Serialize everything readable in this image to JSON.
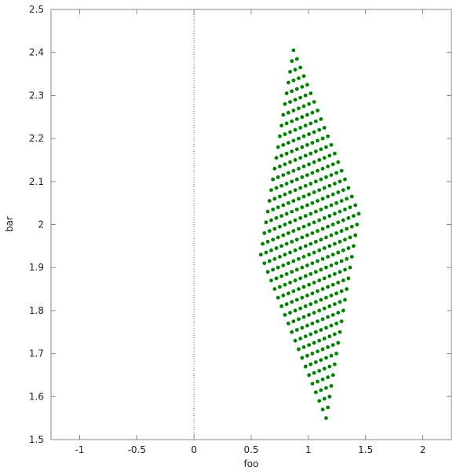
{
  "chart_data": {
    "type": "scatter",
    "title": "",
    "xlabel": "foo",
    "ylabel": "bar",
    "xlim": [
      -1.25,
      2.25
    ],
    "ylim": [
      1.5,
      2.5
    ],
    "xticks": [
      "-1",
      "-0.5",
      "0",
      "0.5",
      "1",
      "1.5",
      "2"
    ],
    "xtick_values": [
      -1,
      -0.5,
      0,
      0.5,
      1,
      1.5,
      2
    ],
    "yticks": [
      "1.5",
      "1.6",
      "1.7",
      "1.8",
      "1.9",
      "2",
      "2.1",
      "2.2",
      "2.3",
      "2.4",
      "2.5"
    ],
    "ytick_values": [
      1.5,
      1.6,
      1.7,
      1.8,
      1.9,
      2.0,
      2.1,
      2.2,
      2.3,
      2.4,
      2.5
    ],
    "zero_line": "x=0 dotted",
    "grid": false,
    "marker_color": "#008000",
    "rows": [
      {
        "x": [
          0.87,
          0.9,
          0.93,
          0.96,
          0.99,
          1.02,
          1.05,
          1.08,
          1.11,
          1.14,
          1.17,
          1.2,
          1.23,
          1.26,
          1.29,
          1.32,
          1.35,
          1.38,
          1.41,
          1.44
        ],
        "y": [
          2.405,
          2.385,
          2.365,
          2.345,
          2.325,
          2.305,
          2.285,
          2.265,
          2.245,
          2.225,
          2.205,
          2.185,
          2.165,
          2.145,
          2.125,
          2.105,
          2.085,
          2.065,
          2.045,
          2.025
        ]
      },
      {
        "x": [
          0.855,
          0.885,
          0.915,
          0.945,
          0.975,
          1.005,
          1.035,
          1.065,
          1.095,
          1.125,
          1.155,
          1.185,
          1.215,
          1.245,
          1.275,
          1.305,
          1.335,
          1.365,
          1.395,
          1.425
        ],
        "y": [
          2.38,
          2.36,
          2.34,
          2.32,
          2.3,
          2.28,
          2.26,
          2.24,
          2.22,
          2.2,
          2.18,
          2.16,
          2.14,
          2.12,
          2.1,
          2.08,
          2.06,
          2.04,
          2.02,
          2.0
        ]
      },
      {
        "x": [
          0.84,
          0.87,
          0.9,
          0.93,
          0.96,
          0.99,
          1.02,
          1.05,
          1.08,
          1.11,
          1.14,
          1.17,
          1.2,
          1.23,
          1.26,
          1.29,
          1.32,
          1.35,
          1.38,
          1.41
        ],
        "y": [
          2.355,
          2.335,
          2.315,
          2.295,
          2.275,
          2.255,
          2.235,
          2.215,
          2.195,
          2.175,
          2.155,
          2.135,
          2.115,
          2.095,
          2.075,
          2.055,
          2.035,
          2.015,
          1.995,
          1.975
        ]
      },
      {
        "x": [
          0.825,
          0.855,
          0.885,
          0.915,
          0.945,
          0.975,
          1.005,
          1.035,
          1.065,
          1.095,
          1.125,
          1.155,
          1.185,
          1.215,
          1.245,
          1.275,
          1.305,
          1.335,
          1.365,
          1.395
        ],
        "y": [
          2.33,
          2.31,
          2.29,
          2.27,
          2.25,
          2.23,
          2.21,
          2.19,
          2.17,
          2.15,
          2.13,
          2.11,
          2.09,
          2.07,
          2.05,
          2.03,
          2.01,
          1.99,
          1.97,
          1.95
        ]
      },
      {
        "x": [
          0.81,
          0.84,
          0.87,
          0.9,
          0.93,
          0.96,
          0.99,
          1.02,
          1.05,
          1.08,
          1.11,
          1.14,
          1.17,
          1.2,
          1.23,
          1.26,
          1.29,
          1.32,
          1.35,
          1.38
        ],
        "y": [
          2.305,
          2.285,
          2.265,
          2.245,
          2.225,
          2.205,
          2.185,
          2.165,
          2.145,
          2.125,
          2.105,
          2.085,
          2.065,
          2.045,
          2.025,
          2.005,
          1.985,
          1.965,
          1.945,
          1.925
        ]
      },
      {
        "x": [
          0.795,
          0.825,
          0.855,
          0.885,
          0.915,
          0.945,
          0.975,
          1.005,
          1.035,
          1.065,
          1.095,
          1.125,
          1.155,
          1.185,
          1.215,
          1.245,
          1.275,
          1.305,
          1.335,
          1.365
        ],
        "y": [
          2.28,
          2.26,
          2.24,
          2.22,
          2.2,
          2.18,
          2.16,
          2.14,
          2.12,
          2.1,
          2.08,
          2.06,
          2.04,
          2.02,
          2.0,
          1.98,
          1.96,
          1.94,
          1.92,
          1.9
        ]
      },
      {
        "x": [
          0.78,
          0.81,
          0.84,
          0.87,
          0.9,
          0.93,
          0.96,
          0.99,
          1.02,
          1.05,
          1.08,
          1.11,
          1.14,
          1.17,
          1.2,
          1.23,
          1.26,
          1.29,
          1.32,
          1.35
        ],
        "y": [
          2.255,
          2.235,
          2.215,
          2.195,
          2.175,
          2.155,
          2.135,
          2.115,
          2.095,
          2.075,
          2.055,
          2.035,
          2.015,
          1.995,
          1.975,
          1.955,
          1.935,
          1.915,
          1.895,
          1.875
        ]
      },
      {
        "x": [
          0.765,
          0.795,
          0.825,
          0.855,
          0.885,
          0.915,
          0.945,
          0.975,
          1.005,
          1.035,
          1.065,
          1.095,
          1.125,
          1.155,
          1.185,
          1.215,
          1.245,
          1.275,
          1.305,
          1.335
        ],
        "y": [
          2.23,
          2.21,
          2.19,
          2.17,
          2.15,
          2.13,
          2.11,
          2.09,
          2.07,
          2.05,
          2.03,
          2.01,
          1.99,
          1.97,
          1.95,
          1.93,
          1.91,
          1.89,
          1.87,
          1.85
        ]
      },
      {
        "x": [
          0.75,
          0.78,
          0.81,
          0.84,
          0.87,
          0.9,
          0.93,
          0.96,
          0.99,
          1.02,
          1.05,
          1.08,
          1.11,
          1.14,
          1.17,
          1.2,
          1.23,
          1.26,
          1.29,
          1.32
        ],
        "y": [
          2.205,
          2.185,
          2.165,
          2.145,
          2.125,
          2.105,
          2.085,
          2.065,
          2.045,
          2.025,
          2.005,
          1.985,
          1.965,
          1.945,
          1.925,
          1.905,
          1.885,
          1.865,
          1.845,
          1.825
        ]
      },
      {
        "x": [
          0.735,
          0.765,
          0.795,
          0.825,
          0.855,
          0.885,
          0.915,
          0.945,
          0.975,
          1.005,
          1.035,
          1.065,
          1.095,
          1.125,
          1.155,
          1.185,
          1.215,
          1.245,
          1.275,
          1.305
        ],
        "y": [
          2.18,
          2.16,
          2.14,
          2.12,
          2.1,
          2.08,
          2.06,
          2.04,
          2.02,
          2.0,
          1.98,
          1.96,
          1.94,
          1.92,
          1.9,
          1.88,
          1.86,
          1.84,
          1.82,
          1.8
        ]
      },
      {
        "x": [
          0.72,
          0.75,
          0.78,
          0.81,
          0.84,
          0.87,
          0.9,
          0.93,
          0.96,
          0.99,
          1.02,
          1.05,
          1.08,
          1.11,
          1.14,
          1.17,
          1.2,
          1.23,
          1.26,
          1.29
        ],
        "y": [
          2.155,
          2.135,
          2.115,
          2.095,
          2.075,
          2.055,
          2.035,
          2.015,
          1.995,
          1.975,
          1.955,
          1.935,
          1.915,
          1.895,
          1.875,
          1.855,
          1.835,
          1.815,
          1.795,
          1.775
        ]
      },
      {
        "x": [
          0.705,
          0.735,
          0.765,
          0.795,
          0.825,
          0.855,
          0.885,
          0.915,
          0.945,
          0.975,
          1.005,
          1.035,
          1.065,
          1.095,
          1.125,
          1.155,
          1.185,
          1.215,
          1.245,
          1.275
        ],
        "y": [
          2.13,
          2.11,
          2.09,
          2.07,
          2.05,
          2.03,
          2.01,
          1.99,
          1.97,
          1.95,
          1.93,
          1.91,
          1.89,
          1.87,
          1.85,
          1.83,
          1.81,
          1.79,
          1.77,
          1.75
        ]
      },
      {
        "x": [
          0.69,
          0.72,
          0.75,
          0.78,
          0.81,
          0.84,
          0.87,
          0.9,
          0.93,
          0.96,
          0.99,
          1.02,
          1.05,
          1.08,
          1.11,
          1.14,
          1.17,
          1.2,
          1.23,
          1.26
        ],
        "y": [
          2.105,
          2.085,
          2.065,
          2.045,
          2.025,
          2.005,
          1.985,
          1.965,
          1.945,
          1.925,
          1.905,
          1.885,
          1.865,
          1.845,
          1.825,
          1.805,
          1.785,
          1.765,
          1.745,
          1.725
        ]
      },
      {
        "x": [
          0.675,
          0.705,
          0.735,
          0.765,
          0.795,
          0.825,
          0.855,
          0.885,
          0.915,
          0.945,
          0.975,
          1.005,
          1.035,
          1.065,
          1.095,
          1.125,
          1.155,
          1.185,
          1.215,
          1.245
        ],
        "y": [
          2.08,
          2.06,
          2.04,
          2.02,
          2.0,
          1.98,
          1.96,
          1.94,
          1.92,
          1.9,
          1.88,
          1.86,
          1.84,
          1.82,
          1.8,
          1.78,
          1.76,
          1.74,
          1.72,
          1.7
        ]
      },
      {
        "x": [
          0.66,
          0.69,
          0.72,
          0.75,
          0.78,
          0.81,
          0.84,
          0.87,
          0.9,
          0.93,
          0.96,
          0.99,
          1.02,
          1.05,
          1.08,
          1.11,
          1.14,
          1.17,
          1.2,
          1.23
        ],
        "y": [
          2.055,
          2.035,
          2.015,
          1.995,
          1.975,
          1.955,
          1.935,
          1.915,
          1.895,
          1.875,
          1.855,
          1.835,
          1.815,
          1.795,
          1.775,
          1.755,
          1.735,
          1.715,
          1.695,
          1.675
        ]
      },
      {
        "x": [
          0.645,
          0.675,
          0.705,
          0.735,
          0.765,
          0.795,
          0.825,
          0.855,
          0.885,
          0.915,
          0.945,
          0.975,
          1.005,
          1.035,
          1.065,
          1.095,
          1.125,
          1.155,
          1.185,
          1.215
        ],
        "y": [
          2.03,
          2.01,
          1.99,
          1.97,
          1.95,
          1.93,
          1.91,
          1.89,
          1.87,
          1.85,
          1.83,
          1.81,
          1.79,
          1.77,
          1.75,
          1.73,
          1.71,
          1.69,
          1.67,
          1.65
        ]
      },
      {
        "x": [
          0.63,
          0.66,
          0.69,
          0.72,
          0.75,
          0.78,
          0.81,
          0.84,
          0.87,
          0.9,
          0.93,
          0.96,
          0.99,
          1.02,
          1.05,
          1.08,
          1.11,
          1.14,
          1.17,
          1.2
        ],
        "y": [
          2.005,
          1.985,
          1.965,
          1.945,
          1.925,
          1.905,
          1.885,
          1.865,
          1.845,
          1.825,
          1.805,
          1.785,
          1.765,
          1.745,
          1.725,
          1.705,
          1.685,
          1.665,
          1.645,
          1.625
        ]
      },
      {
        "x": [
          0.615,
          0.645,
          0.675,
          0.705,
          0.735,
          0.765,
          0.795,
          0.825,
          0.855,
          0.885,
          0.915,
          0.945,
          0.975,
          1.005,
          1.035,
          1.065,
          1.095,
          1.125,
          1.155,
          1.185
        ],
        "y": [
          1.98,
          1.96,
          1.94,
          1.92,
          1.9,
          1.88,
          1.86,
          1.84,
          1.82,
          1.8,
          1.78,
          1.76,
          1.74,
          1.72,
          1.7,
          1.68,
          1.66,
          1.64,
          1.62,
          1.6
        ]
      },
      {
        "x": [
          0.6,
          0.63,
          0.66,
          0.69,
          0.72,
          0.75,
          0.78,
          0.81,
          0.84,
          0.87,
          0.9,
          0.93,
          0.96,
          0.99,
          1.02,
          1.05,
          1.08,
          1.11,
          1.14,
          1.17
        ],
        "y": [
          1.955,
          1.935,
          1.915,
          1.895,
          1.875,
          1.855,
          1.835,
          1.815,
          1.795,
          1.775,
          1.755,
          1.735,
          1.715,
          1.695,
          1.675,
          1.655,
          1.635,
          1.615,
          1.595,
          1.575
        ]
      },
      {
        "x": [
          0.585,
          0.615,
          0.645,
          0.675,
          0.705,
          0.735,
          0.765,
          0.795,
          0.825,
          0.855,
          0.885,
          0.915,
          0.945,
          0.975,
          1.005,
          1.035,
          1.065,
          1.095,
          1.125,
          1.155
        ],
        "y": [
          1.93,
          1.91,
          1.89,
          1.87,
          1.85,
          1.83,
          1.81,
          1.79,
          1.77,
          1.75,
          1.73,
          1.71,
          1.69,
          1.67,
          1.65,
          1.63,
          1.61,
          1.59,
          1.57,
          1.55
        ]
      }
    ]
  }
}
